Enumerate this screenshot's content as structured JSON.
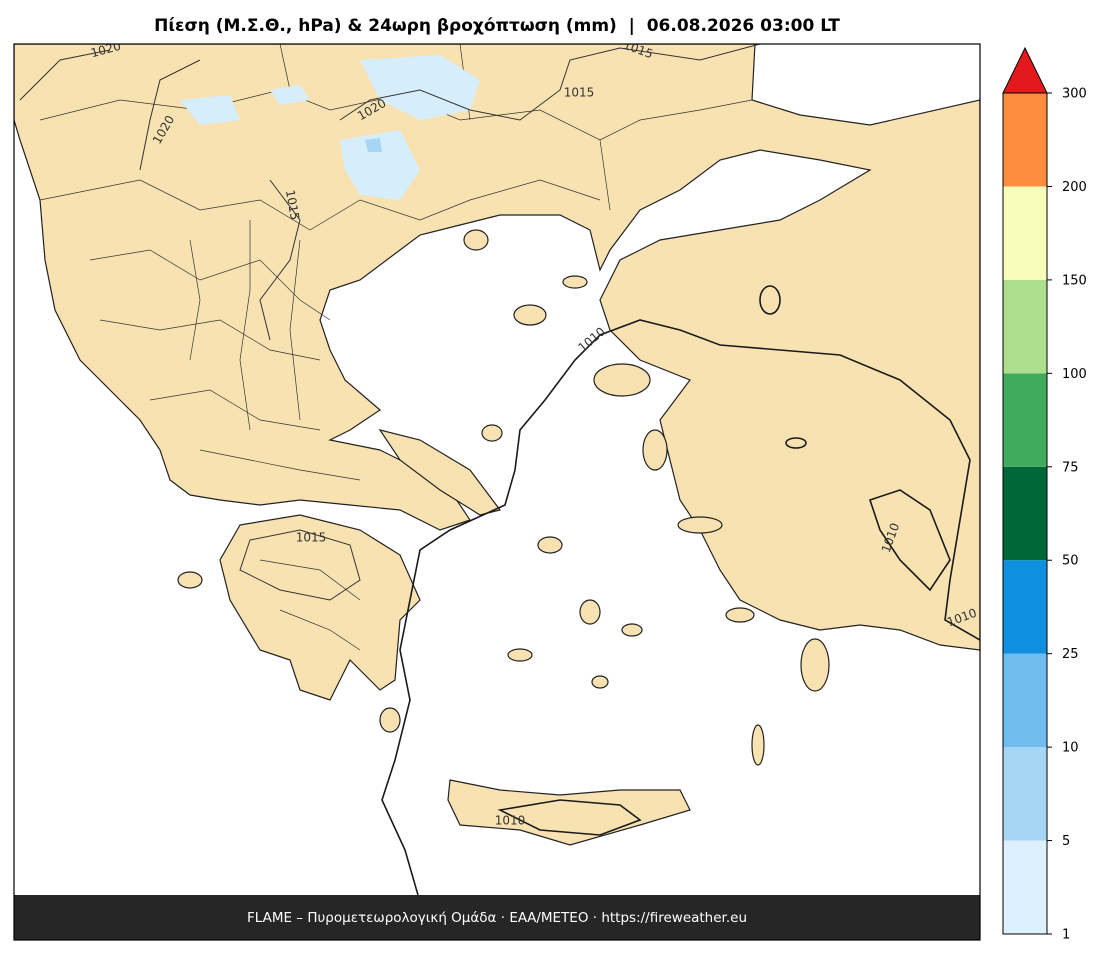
{
  "title": "Πίεση (Μ.Σ.Θ., hPa) & 24ωρη βροχόπτωση (mm)  |  06.08.2026 03:00 LT",
  "footer": "FLAME – Πυρομετεωρολογική Ομάδα · ΕΑΑ/METEO · https://fireweather.eu",
  "isobar_labels": [
    1020,
    1020,
    1020,
    1015,
    1015,
    1015,
    1015,
    1010,
    1010,
    1010,
    1010
  ],
  "colorbar": {
    "ticks": [
      1,
      5,
      10,
      25,
      50,
      75,
      100,
      150,
      200,
      300
    ],
    "colors": [
      "#dcf0fd",
      "#a7d6f5",
      "#6fbdee",
      "#0f8fe0",
      "#006837",
      "#41ab5d",
      "#addf8e",
      "#f7fcb9",
      "#fd8d3c"
    ],
    "extend_color": "#e31a1c"
  }
}
